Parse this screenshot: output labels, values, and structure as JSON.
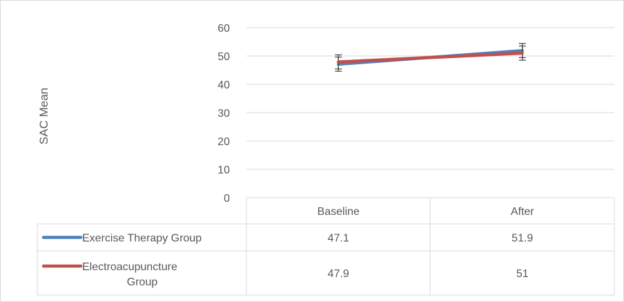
{
  "chart_data": {
    "type": "line",
    "title": "",
    "xlabel": "",
    "ylabel": "SAC Mean",
    "ylim": [
      0,
      60
    ],
    "yticks": [
      0,
      10,
      20,
      30,
      40,
      50,
      60
    ],
    "categories": [
      "Baseline",
      "After"
    ],
    "grid": true,
    "legend": "data-table",
    "series": [
      {
        "name": "Exercise Therapy Group",
        "values": [
          47.1,
          51.9
        ],
        "value_labels": [
          "47.1",
          "51.9"
        ],
        "error": [
          2.5,
          2.5
        ],
        "color": "#4f81bd"
      },
      {
        "name": "Electroacupuncture Group",
        "values": [
          47.9,
          51
        ],
        "value_labels": [
          "47.9",
          "51"
        ],
        "error": [
          2.5,
          2.5
        ],
        "color": "#c0504d"
      }
    ]
  }
}
